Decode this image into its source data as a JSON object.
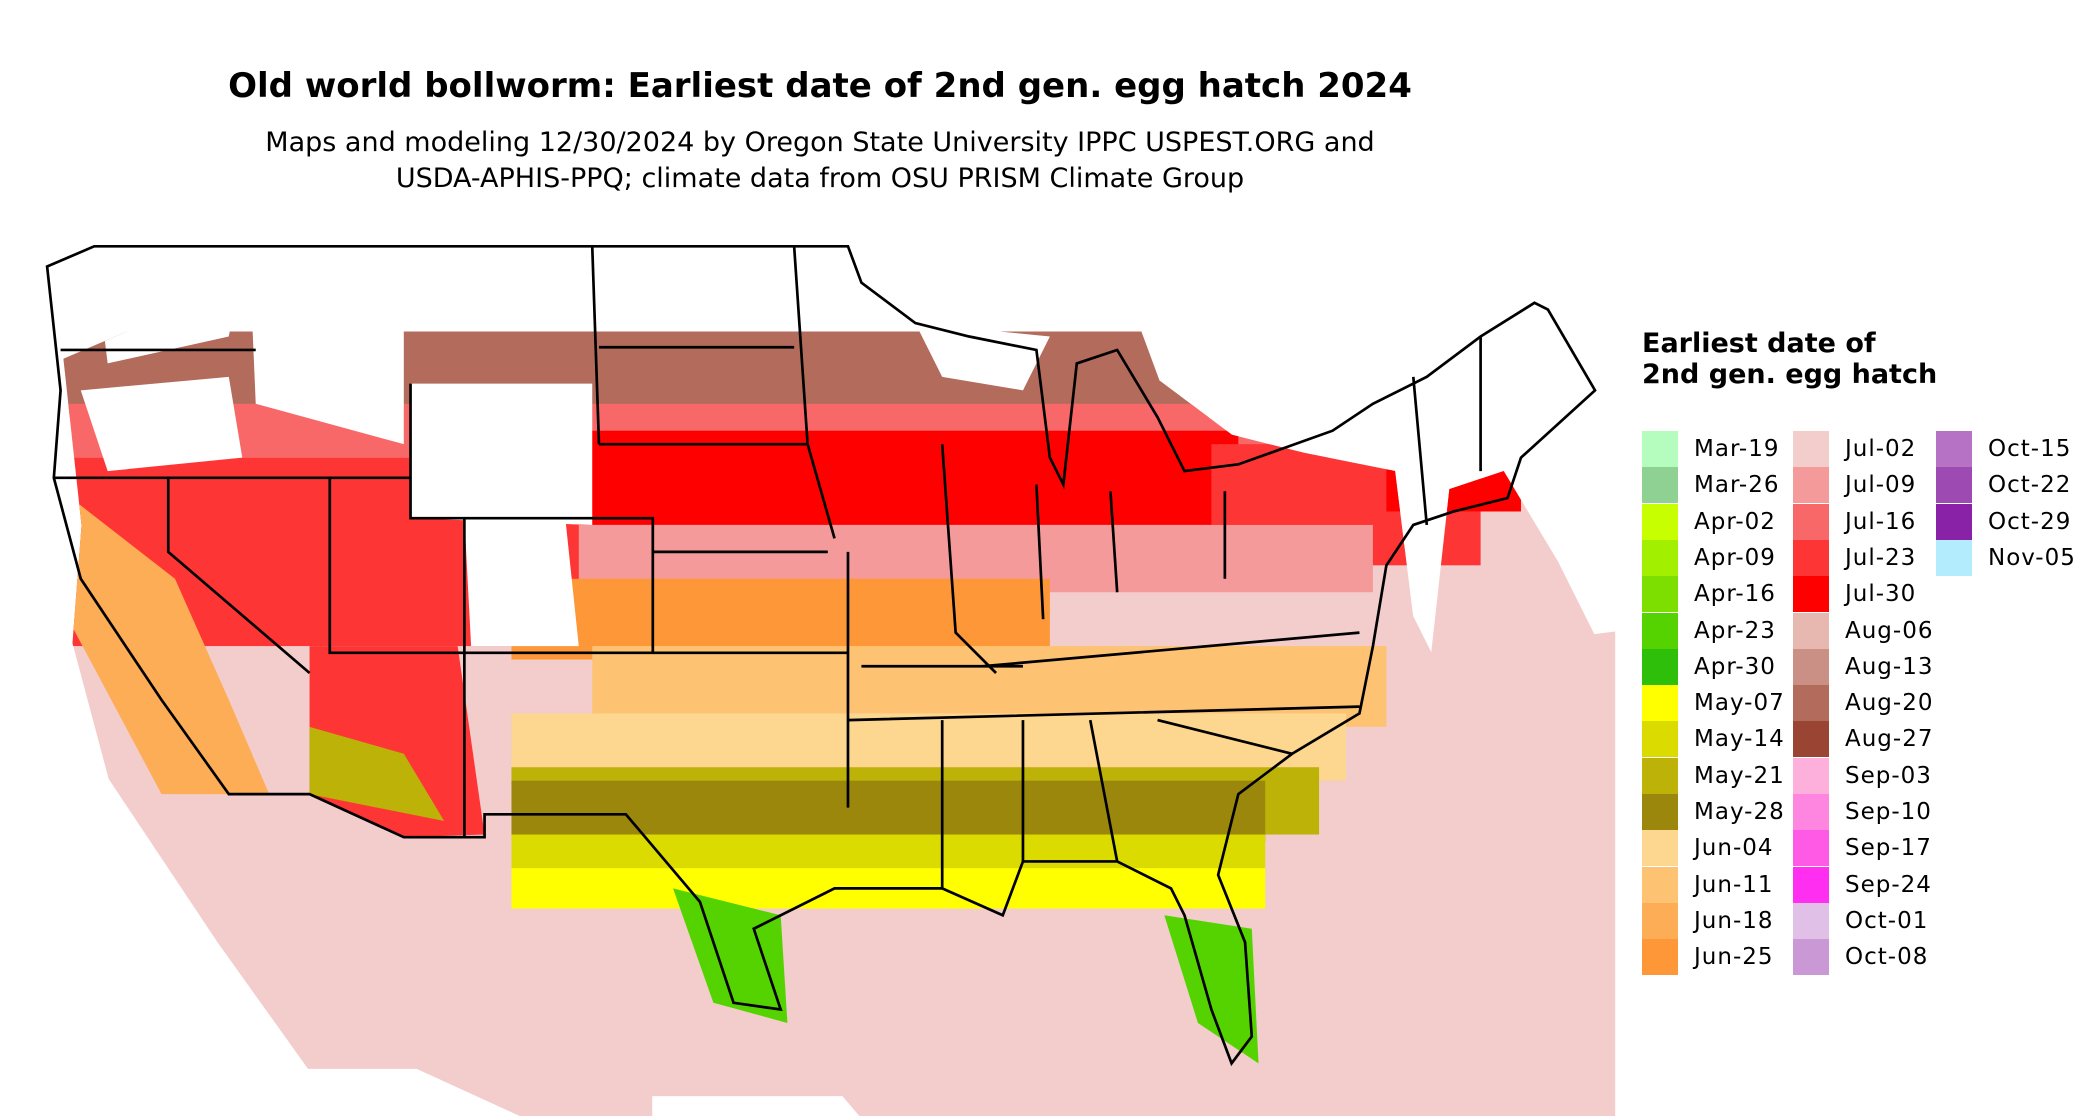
{
  "title": "Old world bollworm: Earliest date of 2nd gen. egg hatch 2024",
  "subtitle": [
    "Maps and modeling 12/30/2024 by Oregon State University IPPC USPEST.ORG and",
    "USDA-APHIS-PPQ; climate data from OSU PRISM Climate Group"
  ],
  "legend": {
    "title": "Earliest date of 2nd gen. egg hatch",
    "items": [
      {
        "label": "Mar-19",
        "color": "#b4fdbf"
      },
      {
        "label": "Mar-26",
        "color": "#8fd193"
      },
      {
        "label": "Apr-02",
        "color": "#c8ff00"
      },
      {
        "label": "Apr-09",
        "color": "#a3ef00"
      },
      {
        "label": "Apr-16",
        "color": "#7ddf00"
      },
      {
        "label": "Apr-23",
        "color": "#55d300"
      },
      {
        "label": "Apr-30",
        "color": "#2ebf0a"
      },
      {
        "label": "May-07",
        "color": "#ffff00"
      },
      {
        "label": "May-14",
        "color": "#dcdb00"
      },
      {
        "label": "May-21",
        "color": "#bdb207"
      },
      {
        "label": "May-28",
        "color": "#9b870c"
      },
      {
        "label": "Jun-04",
        "color": "#fdd68f"
      },
      {
        "label": "Jun-11",
        "color": "#fdc372"
      },
      {
        "label": "Jun-18",
        "color": "#fcad56"
      },
      {
        "label": "Jun-25",
        "color": "#fd9738"
      },
      {
        "label": "Jul-02",
        "color": "#f3cccc"
      },
      {
        "label": "Jul-09",
        "color": "#f49a9a"
      },
      {
        "label": "Jul-16",
        "color": "#f96868"
      },
      {
        "label": "Jul-23",
        "color": "#fe3535"
      },
      {
        "label": "Jul-30",
        "color": "#ff0000"
      },
      {
        "label": "Aug-06",
        "color": "#e6b8b0"
      },
      {
        "label": "Aug-13",
        "color": "#cb9085"
      },
      {
        "label": "Aug-20",
        "color": "#b36b5c"
      },
      {
        "label": "Aug-27",
        "color": "#9a4433"
      },
      {
        "label": "Sep-03",
        "color": "#fdb0dc"
      },
      {
        "label": "Sep-10",
        "color": "#fe86e0"
      },
      {
        "label": "Sep-17",
        "color": "#fe5ae6"
      },
      {
        "label": "Sep-24",
        "color": "#ff2ef0"
      },
      {
        "label": "Oct-01",
        "color": "#e0c0e6"
      },
      {
        "label": "Oct-08",
        "color": "#cb98d6"
      },
      {
        "label": "Oct-15",
        "color": "#b673c6"
      },
      {
        "label": "Oct-22",
        "color": "#9e4ab3"
      },
      {
        "label": "Oct-29",
        "color": "#8922a6"
      },
      {
        "label": "Nov-05",
        "color": "#b3ecfd"
      }
    ]
  }
}
